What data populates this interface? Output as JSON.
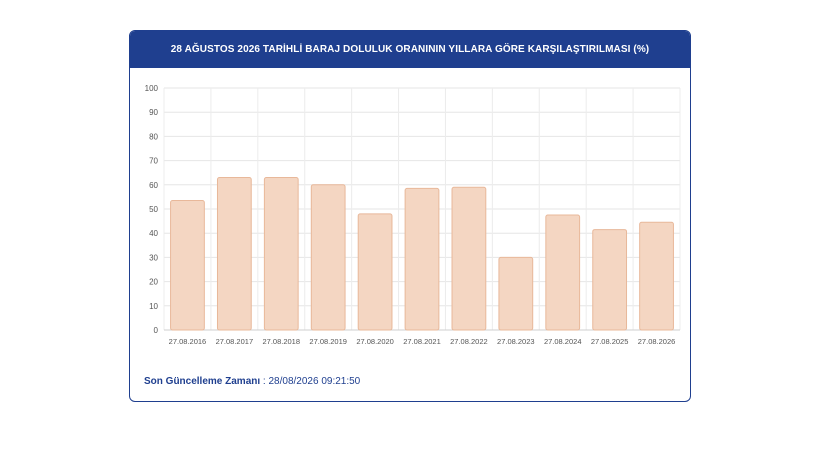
{
  "card": {
    "title": "28 AĞUSTOS 2026 TARİHLİ BARAJ DOLULUK ORANININ YILLARA GÖRE KARŞILAŞTIRILMASI (%)"
  },
  "footer": {
    "label": "Son Güncelleme Zamanı",
    "value": " : 28/08/2026 09:21:50"
  },
  "colors": {
    "header_bg": "#1f3f8f",
    "bar_fill": "#f4d6c2",
    "bar_stroke": "#e8b89a"
  },
  "chart_data": {
    "type": "bar",
    "categories": [
      "27.08.2016",
      "27.08.2017",
      "27.08.2018",
      "27.08.2019",
      "27.08.2020",
      "27.08.2021",
      "27.08.2022",
      "27.08.2023",
      "27.08.2024",
      "27.08.2025",
      "27.08.2026"
    ],
    "values": [
      53.5,
      63,
      63,
      60,
      48,
      58.5,
      59,
      30,
      47.5,
      41.5,
      44.5
    ],
    "ylim": [
      0,
      100
    ],
    "yticks": [
      0,
      10,
      20,
      30,
      40,
      50,
      60,
      70,
      80,
      90,
      100
    ],
    "grid": true,
    "title": "",
    "xlabel": "",
    "ylabel": ""
  }
}
